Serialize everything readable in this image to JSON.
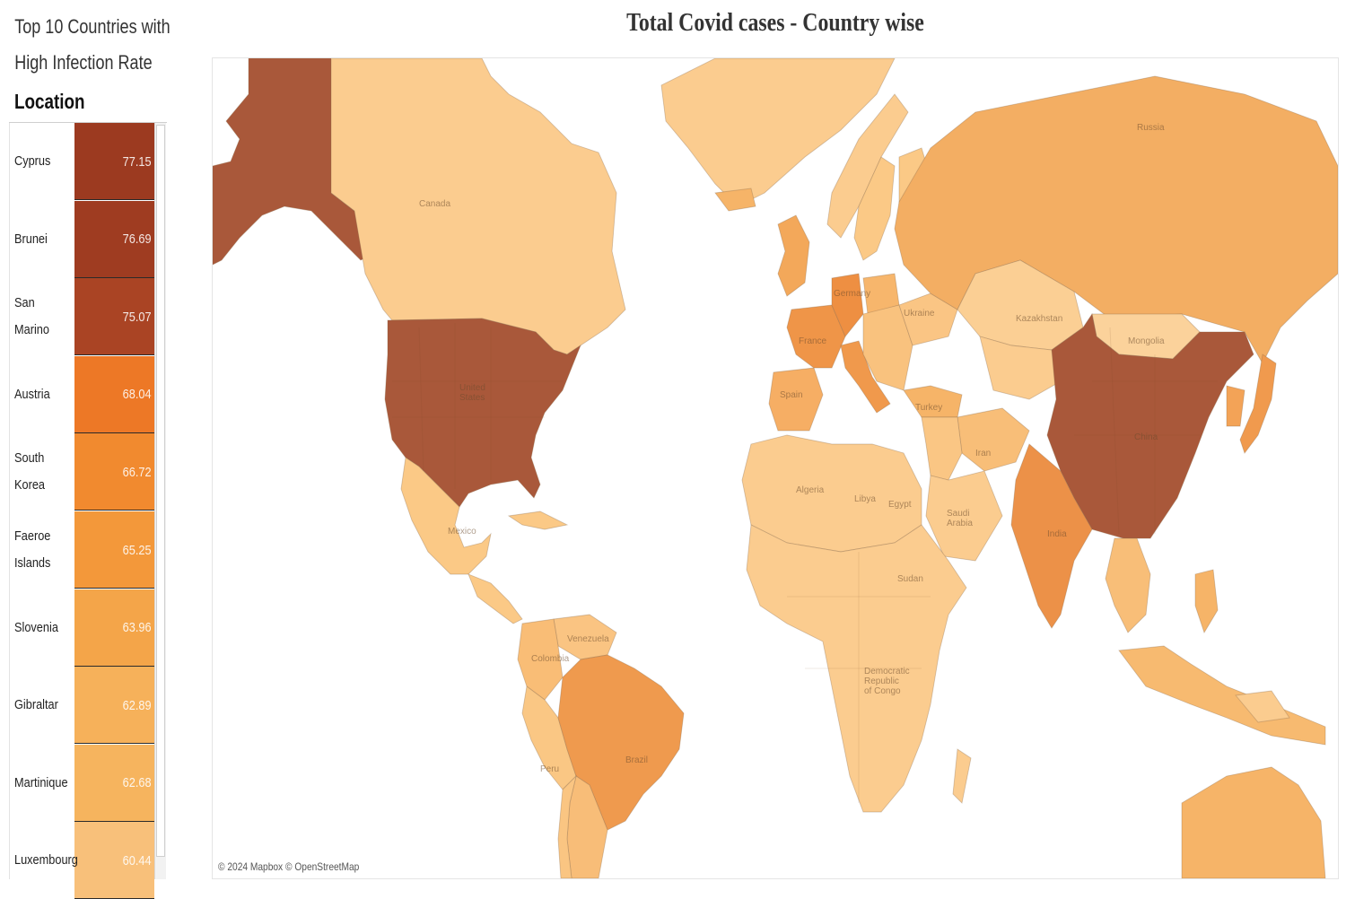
{
  "sidebar": {
    "title_line1": "Top 10 Countries with",
    "title_line2": "High Infection Rate",
    "column_header": "Location",
    "rows": [
      {
        "location": "Cyprus",
        "value": "77.15",
        "color": "#9c3a20"
      },
      {
        "location": "Brunei",
        "value": "76.69",
        "color": "#9f3c21"
      },
      {
        "location": "San Marino",
        "value": "75.07",
        "color": "#aa4424"
      },
      {
        "location": "Austria",
        "value": "68.04",
        "color": "#ed7826"
      },
      {
        "location": "South Korea",
        "value": "66.72",
        "color": "#f18a2f"
      },
      {
        "location": "Faeroe Islands",
        "value": "65.25",
        "color": "#f3983a"
      },
      {
        "location": "Slovenia",
        "value": "63.96",
        "color": "#f4a549"
      },
      {
        "location": "Gibraltar",
        "value": "62.89",
        "color": "#f6b15a"
      },
      {
        "location": "Martinique",
        "value": "62.68",
        "color": "#f6b45e"
      },
      {
        "location": "Luxembourg",
        "value": "60.44",
        "color": "#f8c07a"
      }
    ]
  },
  "map": {
    "title": "Total Covid cases - Country wise",
    "attribution": "© 2024 Mapbox © OpenStreetMap",
    "country_labels": [
      "Canada",
      "United States",
      "Mexico",
      "Venezuela",
      "Colombia",
      "Peru",
      "Brazil",
      "Spain",
      "France",
      "Germany",
      "Ukraine",
      "Turkey",
      "Iran",
      "Saudi Arabia",
      "Algeria",
      "Libya",
      "Egypt",
      "Sudan",
      "Democratic Republic of Congo",
      "Kazakhstan",
      "Mongolia",
      "Russia",
      "China",
      "India"
    ],
    "countries": [
      {
        "name": "Alaska (United States)",
        "shade": "#a9583a"
      },
      {
        "name": "Canada",
        "shade": "#fbcc8f"
      },
      {
        "name": "Greenland",
        "shade": "#fbcc8f"
      },
      {
        "name": "United States",
        "shade": "#a9583a"
      },
      {
        "name": "Mexico",
        "shade": "#fbc986"
      },
      {
        "name": "Central America",
        "shade": "#fbc986"
      },
      {
        "name": "Venezuela",
        "shade": "#fac482"
      },
      {
        "name": "Colombia",
        "shade": "#f9bd76"
      },
      {
        "name": "Peru",
        "shade": "#fac784"
      },
      {
        "name": "Brazil",
        "shade": "#ef9a4e"
      },
      {
        "name": "Argentina",
        "shade": "#f8bd78"
      },
      {
        "name": "Chile",
        "shade": "#fac582"
      },
      {
        "name": "Iceland",
        "shade": "#f6b468"
      },
      {
        "name": "United Kingdom",
        "shade": "#f3a85a"
      },
      {
        "name": "Norway",
        "shade": "#fbcc8f"
      },
      {
        "name": "Sweden",
        "shade": "#fbc986"
      },
      {
        "name": "Finland",
        "shade": "#fbc986"
      },
      {
        "name": "Spain",
        "shade": "#f6ae64"
      },
      {
        "name": "France",
        "shade": "#ef9548"
      },
      {
        "name": "Germany",
        "shade": "#ee8f42"
      },
      {
        "name": "Italy",
        "shade": "#f0994c"
      },
      {
        "name": "Poland",
        "shade": "#f7b66c"
      },
      {
        "name": "Eastern Europe",
        "shade": "#f9c27e"
      },
      {
        "name": "Ukraine",
        "shade": "#fac584"
      },
      {
        "name": "Turkey",
        "shade": "#f6b468"
      },
      {
        "name": "Russia",
        "shade": "#f3ae63"
      },
      {
        "name": "Kazakhstan",
        "shade": "#fbcf94"
      },
      {
        "name": "Central Asia",
        "shade": "#fbcc8f"
      },
      {
        "name": "Mongolia",
        "shade": "#fbd29b"
      },
      {
        "name": "China",
        "shade": "#a9583a"
      },
      {
        "name": "India",
        "shade": "#ec9148"
      },
      {
        "name": "Iran",
        "shade": "#f8be78"
      },
      {
        "name": "Middle East",
        "shade": "#fac684"
      },
      {
        "name": "Saudi Arabia",
        "shade": "#fbcc8f"
      },
      {
        "name": "North Africa",
        "shade": "#fbcc8f"
      },
      {
        "name": "Africa",
        "shade": "#fbcc8f"
      },
      {
        "name": "Southeast Asia",
        "shade": "#f8be78"
      },
      {
        "name": "Indonesia",
        "shade": "#f7ba70"
      },
      {
        "name": "Japan",
        "shade": "#f09a4e"
      },
      {
        "name": "Korea",
        "shade": "#f3a357"
      },
      {
        "name": "Philippines",
        "shade": "#f6b468"
      },
      {
        "name": "Australia",
        "shade": "#f6b468"
      },
      {
        "name": "Papua New Guinea",
        "shade": "#fbcc8f"
      },
      {
        "name": "Madagascar",
        "shade": "#fbcc8f"
      },
      {
        "name": "Cuba",
        "shade": "#fbc986"
      }
    ]
  }
}
